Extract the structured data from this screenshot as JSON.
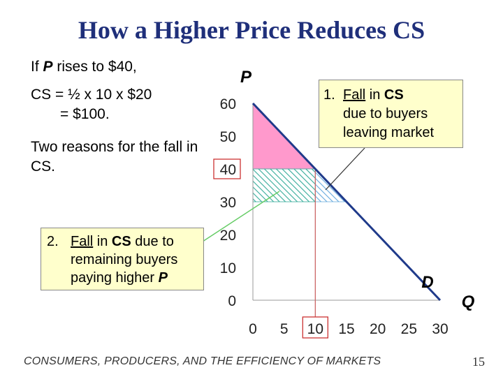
{
  "slide": {
    "title": "How a Higher Price Reduces CS",
    "body": {
      "line1_pre": "If ",
      "line1_var": "P",
      "line1_post": " rises to $40,",
      "line2": "CS = ½ x 10 x $20",
      "line3": "= $100.",
      "line4": "Two reasons for the fall in CS."
    },
    "callout1": {
      "number": "1.",
      "fall": "Fall",
      "in": " in ",
      "cs": "CS",
      "rest1": "due to buyers",
      "rest2": "leaving market"
    },
    "callout2": {
      "number": "2.",
      "fall": "Fall",
      "in": " in ",
      "cs": "CS",
      "after_cs": " due to",
      "rest1": "remaining buyers",
      "rest2_pre": "paying higher ",
      "rest2_var": "P"
    },
    "footer": "CONSUMERS, PRODUCERS, AND THE EFFICIENCY OF MARKETS",
    "page_number": "15"
  },
  "chart_data": {
    "type": "line",
    "y_axis_label": "P",
    "x_axis_label": "Q",
    "y_ticks": [
      "0",
      "10",
      "20",
      "30",
      "40",
      "50",
      "60"
    ],
    "x_ticks": [
      "0",
      "5",
      "10",
      "15",
      "20",
      "25",
      "30"
    ],
    "xlim": [
      0,
      30
    ],
    "ylim": [
      0,
      60
    ],
    "highlighted_y_tick": "40",
    "highlighted_x_tick": "10",
    "demand_label": "D",
    "demand_curve": {
      "x": [
        0,
        30
      ],
      "y": [
        60,
        0
      ]
    },
    "new_price": 40,
    "old_price": 30,
    "new_quantity": 10,
    "old_quantity": 15,
    "colors": {
      "demand": "#1f3a8a",
      "cs_area": "#ff99cc",
      "lost_cs_remaining": "#33aa99",
      "lost_cs_leaving": "#66aadd",
      "highlight_box": "#cc3333",
      "guide_line": "#cc6666",
      "arrow2": "#66cc66"
    }
  }
}
